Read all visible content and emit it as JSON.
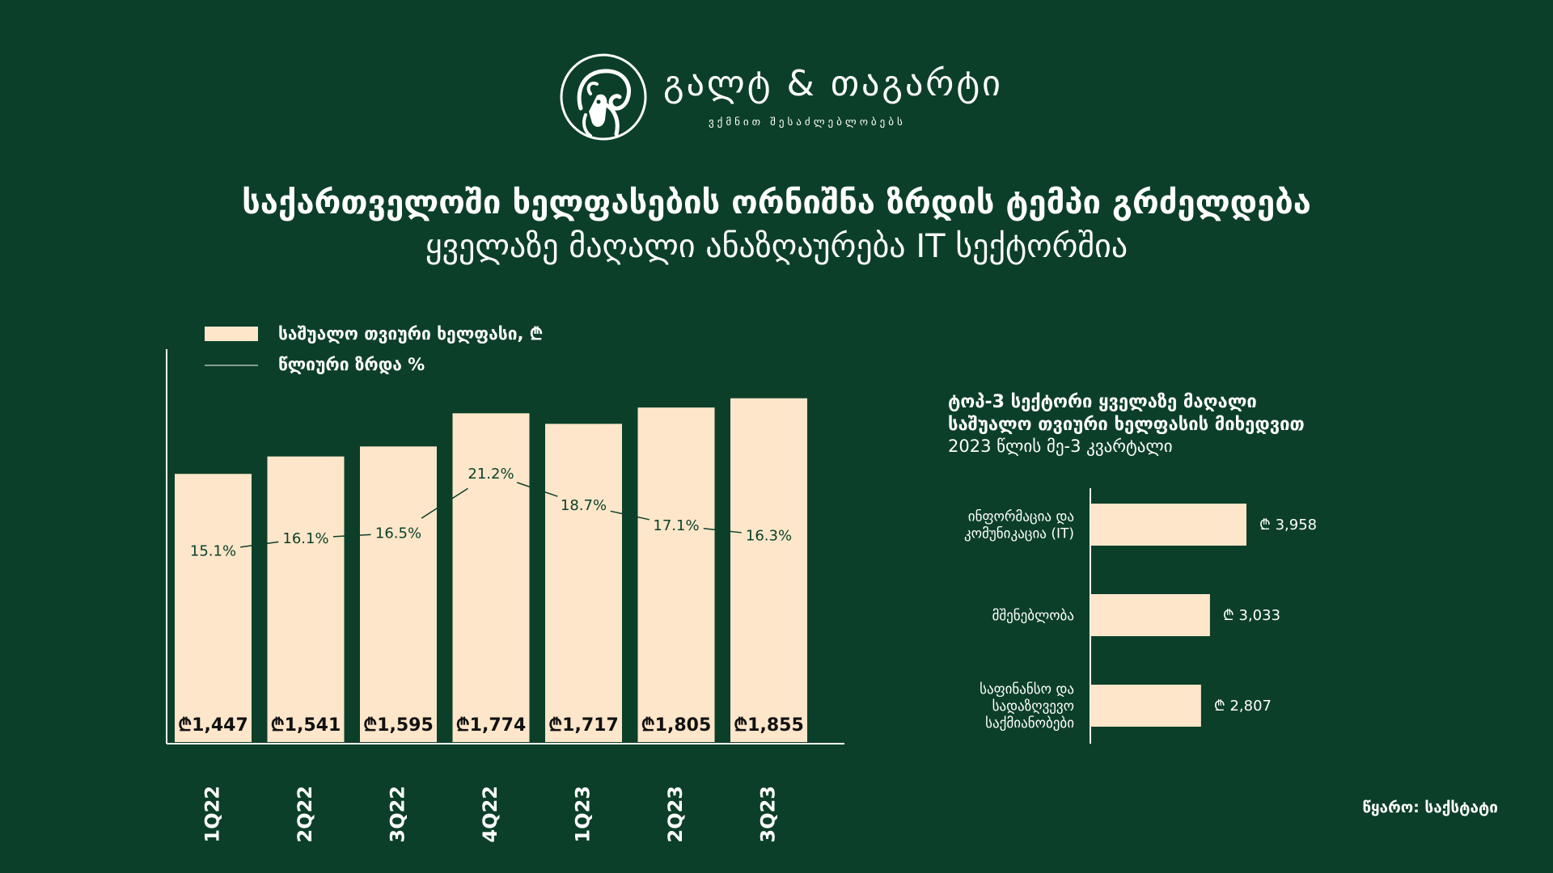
{
  "brand": {
    "name": "გალტ & თაგარტი",
    "tagline": "ვქმნით შესაძლებლობებს"
  },
  "headline": {
    "title": "საქართველოში ხელფასების ორნიშნა ზრდის ტემპი გრძელდება",
    "subtitle": "ყველაზე მაღალი ანაზღაურება IT სექტორშია"
  },
  "source": "წყარო: საქსტატი",
  "colors": {
    "background": "#0c3f29",
    "bar": "#fde6c9",
    "line": "#0c3f29",
    "text": "#ffffff",
    "dark_text": "#111111"
  },
  "chart_data": [
    {
      "type": "bar",
      "title": "",
      "legend": {
        "placement": "top-left",
        "bar_label": "საშუალო თვიური ხელფასი, ₾",
        "line_label": "წლიური ზრდა %"
      },
      "categories": [
        "1Q22",
        "2Q22",
        "3Q22",
        "4Q22",
        "1Q23",
        "2Q23",
        "3Q23"
      ],
      "series": [
        {
          "name": "საშუალო თვიური ხელფასი, ₾",
          "type": "bar",
          "values": [
            1447,
            1541,
            1595,
            1774,
            1717,
            1805,
            1855
          ],
          "labels": [
            "₾1,447",
            "₾1,541",
            "₾1,595",
            "₾1,774",
            "₾1,717",
            "₾1,805",
            "₾1,855"
          ]
        },
        {
          "name": "წლიური ზრდა %",
          "type": "line",
          "values": [
            15.1,
            16.1,
            16.5,
            21.2,
            18.7,
            17.1,
            16.3
          ],
          "labels": [
            "15.1%",
            "16.1%",
            "16.5%",
            "21.2%",
            "18.7%",
            "17.1%",
            "16.3%"
          ]
        }
      ],
      "ylim": [
        0,
        2050
      ],
      "line_ylim": [
        0,
        30
      ],
      "grid": false
    },
    {
      "type": "bar",
      "orientation": "horizontal",
      "title": "ტოპ-3 სექტორი ყველაზე მაღალი საშუალო თვიური ხელფასის მიხედვით",
      "title_lines": [
        "ტოპ-3 სექტორი ყველაზე მაღალი",
        "საშუალო თვიური ხელფასის მიხედვით"
      ],
      "subtitle": "2023 წლის მე-3 კვარტალი",
      "categories": [
        [
          "ინფორმაცია და",
          "კომუნიკაცია (IT)"
        ],
        [
          "მშენებლობა"
        ],
        [
          "საფინანსო და",
          "სადაზღვევო",
          "საქმიანობები"
        ]
      ],
      "values": [
        3958,
        3033,
        2807
      ],
      "labels": [
        "₾ 3,958",
        "₾ 3,033",
        "₾ 2,807"
      ],
      "xlim": [
        0,
        4250
      ],
      "grid": false
    }
  ]
}
